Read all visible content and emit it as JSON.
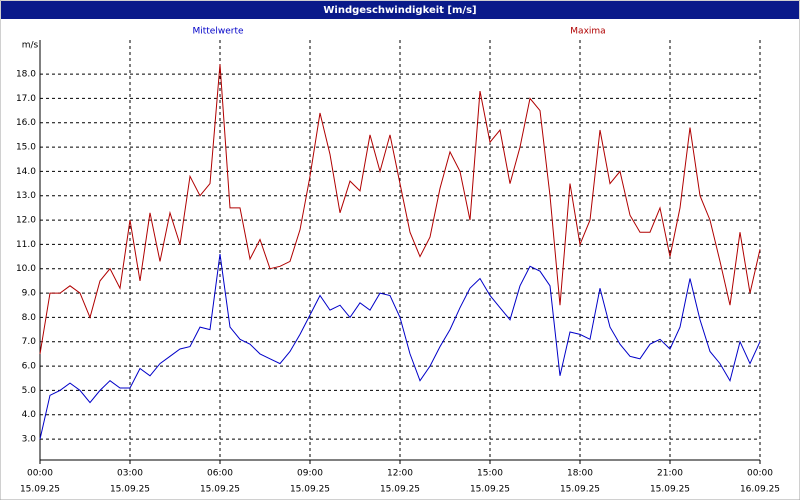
{
  "chart_data": {
    "type": "line",
    "title": "Windgeschwindigkeit [m/s]",
    "y_unit": "m/s",
    "x": [
      0,
      20,
      40,
      60,
      80,
      100,
      120,
      140,
      160,
      180,
      200,
      220,
      240,
      260,
      280,
      300,
      320,
      340,
      360,
      380,
      400,
      420,
      440,
      460,
      480,
      500,
      520,
      540,
      560,
      580,
      600,
      620,
      640,
      660,
      680,
      700,
      720,
      740,
      760,
      780,
      800,
      820,
      840,
      860,
      880,
      900,
      920,
      940,
      960,
      980,
      1000,
      1020,
      1040,
      1060,
      1080,
      1100,
      1120,
      1140,
      1160,
      1180,
      1200,
      1220,
      1240,
      1260,
      1280,
      1300,
      1320,
      1340,
      1360,
      1380,
      1400,
      1420,
      1440
    ],
    "series": [
      {
        "name": "Mittelwerte",
        "color": "#0000c8",
        "values": [
          3.0,
          4.8,
          5.0,
          5.3,
          5.0,
          4.5,
          5.0,
          5.4,
          5.1,
          5.1,
          5.9,
          5.6,
          6.1,
          6.4,
          6.7,
          6.8,
          7.6,
          7.5,
          10.6,
          7.6,
          7.1,
          6.9,
          6.5,
          6.3,
          6.1,
          6.6,
          7.3,
          8.1,
          8.9,
          8.3,
          8.5,
          8.0,
          8.6,
          8.3,
          9.0,
          8.9,
          8.0,
          6.5,
          5.4,
          6.0,
          6.8,
          7.5,
          8.4,
          9.2,
          9.6,
          8.9,
          8.4,
          7.9,
          9.3,
          10.1,
          9.9,
          9.3,
          5.6,
          7.4,
          7.3,
          7.1,
          9.2,
          7.6,
          6.9,
          6.4,
          6.3,
          6.9,
          7.1,
          6.7,
          7.6,
          9.6,
          7.9,
          6.6,
          6.1,
          5.4,
          7.0,
          6.1,
          7.0
        ]
      },
      {
        "name": "Maxima",
        "color": "#b00000",
        "values": [
          6.5,
          9.0,
          9.0,
          9.3,
          9.0,
          8.0,
          9.5,
          10.0,
          9.2,
          12.0,
          9.5,
          12.3,
          10.3,
          12.3,
          11.0,
          13.8,
          13.0,
          13.5,
          18.4,
          12.5,
          12.5,
          10.4,
          11.2,
          10.0,
          10.1,
          10.3,
          11.6,
          13.8,
          16.4,
          14.7,
          12.3,
          13.6,
          13.2,
          15.5,
          14.0,
          15.5,
          13.5,
          11.5,
          10.5,
          11.3,
          13.3,
          14.8,
          14.0,
          12.0,
          17.3,
          15.2,
          15.7,
          13.5,
          15.0,
          17.0,
          16.5,
          13.0,
          8.5,
          13.5,
          11.0,
          12.0,
          15.7,
          13.5,
          14.0,
          12.2,
          11.5,
          11.5,
          12.5,
          10.5,
          12.5,
          15.8,
          13.0,
          12.0,
          10.3,
          8.5,
          11.5,
          9.0,
          10.8
        ]
      }
    ],
    "xlim": [
      0,
      1440
    ],
    "xticks": [
      {
        "value": 0,
        "label": "00:00"
      },
      {
        "value": 180,
        "label": "03:00"
      },
      {
        "value": 360,
        "label": "06:00"
      },
      {
        "value": 540,
        "label": "09:00"
      },
      {
        "value": 720,
        "label": "12:00"
      },
      {
        "value": 900,
        "label": "15:00"
      },
      {
        "value": 1080,
        "label": "18:00"
      },
      {
        "value": 1260,
        "label": "21:00"
      },
      {
        "value": 1440,
        "label": "00:00"
      }
    ],
    "xtick_dates": [
      "15.09.25",
      "15.09.25",
      "15.09.25",
      "15.09.25",
      "15.09.25",
      "15.09.25",
      "15.09.25",
      "15.09.25",
      "16.09.25"
    ],
    "ylim": [
      2.14,
      19.4
    ],
    "yticks": [
      {
        "value": 3,
        "label": "3.0"
      },
      {
        "value": 4,
        "label": "4.0"
      },
      {
        "value": 5,
        "label": "5.0"
      },
      {
        "value": 6,
        "label": "6.0"
      },
      {
        "value": 7,
        "label": "7.0"
      },
      {
        "value": 8,
        "label": "8.0"
      },
      {
        "value": 9,
        "label": "9.0"
      },
      {
        "value": 10,
        "label": "10.0"
      },
      {
        "value": 11,
        "label": "11.0"
      },
      {
        "value": 12,
        "label": "12.0"
      },
      {
        "value": 13,
        "label": "13.0"
      },
      {
        "value": 14,
        "label": "14.0"
      },
      {
        "value": 15,
        "label": "15.0"
      },
      {
        "value": 16,
        "label": "16.0"
      },
      {
        "value": 17,
        "label": "17.0"
      },
      {
        "value": 18,
        "label": "18.0"
      }
    ],
    "grid": true
  }
}
